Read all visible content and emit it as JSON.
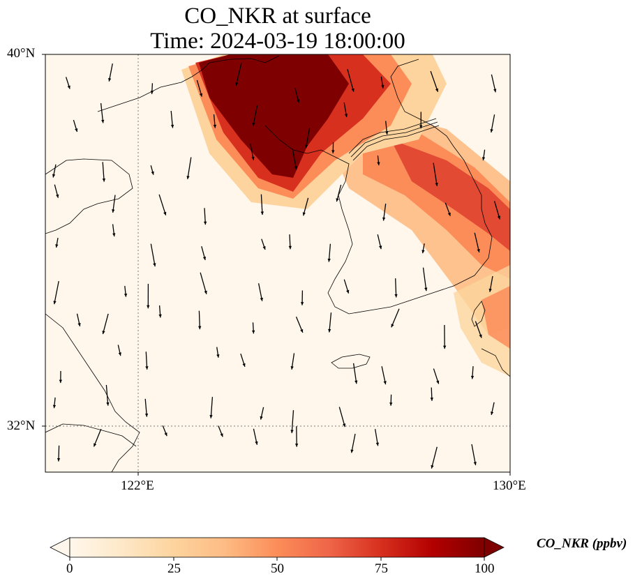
{
  "title_line1": "CO_NKR at surface",
  "title_line2": "Time: 2024-03-19 18:00:00",
  "map": {
    "lat_labels": [
      "40°N",
      "32°N"
    ],
    "lon_labels": [
      "122°E",
      "130°E"
    ],
    "extent": {
      "lon_min": 120,
      "lon_max": 130,
      "lat_min": 31,
      "lat_max": 40
    },
    "gridlines": {
      "lon": [
        122
      ],
      "lat": [
        32
      ],
      "style": "dotted"
    },
    "coastlines": true
  },
  "colorbar": {
    "label": "CO_NKR (ppbv)",
    "ticks": [
      "0",
      "25",
      "50",
      "75",
      "100"
    ],
    "min": 0,
    "max": 100,
    "extend": "both",
    "colormap": "OrRd",
    "colors": [
      "#fff7ec",
      "#fdd49e",
      "#fc8d59",
      "#d7301f",
      "#7f0000"
    ]
  },
  "field": {
    "plumes": [
      {
        "name": "north-korea-core",
        "peak_ppbv": 100
      },
      {
        "name": "east-band",
        "peak_ppbv": 75
      }
    ]
  },
  "wind_vectors": {
    "style": "black arrows",
    "count": 100
  }
}
